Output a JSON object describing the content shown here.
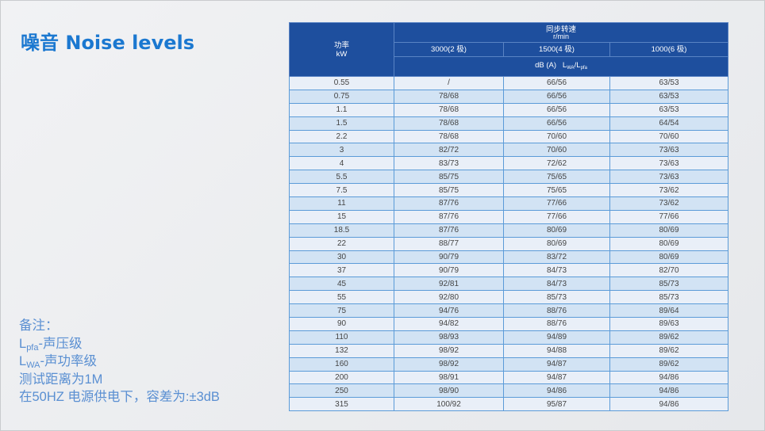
{
  "title": "噪音 Noise levels",
  "notes": {
    "heading": "备注：",
    "lpfa_main": "L",
    "lpfa_sub": "pfa",
    "lpfa_text": "-声压级",
    "lwa_main": "L",
    "lwa_sub": "WA",
    "lwa_text": "-声功率级",
    "distance": "测试距离为1M",
    "condition": "在50HZ 电源供电下，容差为:±3dB"
  },
  "table": {
    "power_header": "功率",
    "power_unit": "kW",
    "speed_header": "同步转速",
    "speed_unit": "r/min",
    "speeds": [
      "3000(2 极)",
      "1500(4 极)",
      "1000(6 极)"
    ],
    "unit_row": "dB (A)   L",
    "unit_sub1": "WA",
    "unit_slash": "/L",
    "unit_sub2": "pfa",
    "rows": [
      [
        "0.55",
        "/",
        "66/56",
        "63/53"
      ],
      [
        "0.75",
        "78/68",
        "66/56",
        "63/53"
      ],
      [
        "1.1",
        "78/68",
        "66/56",
        "63/53"
      ],
      [
        "1.5",
        "78/68",
        "66/56",
        "64/54"
      ],
      [
        "2.2",
        "78/68",
        "70/60",
        "70/60"
      ],
      [
        "3",
        "82/72",
        "70/60",
        "73/63"
      ],
      [
        "4",
        "83/73",
        "72/62",
        "73/63"
      ],
      [
        "5.5",
        "85/75",
        "75/65",
        "73/63"
      ],
      [
        "7.5",
        "85/75",
        "75/65",
        "73/62"
      ],
      [
        "11",
        "87/76",
        "77/66",
        "73/62"
      ],
      [
        "15",
        "87/76",
        "77/66",
        "77/66"
      ],
      [
        "18.5",
        "87/76",
        "80/69",
        "80/69"
      ],
      [
        "22",
        "88/77",
        "80/69",
        "80/69"
      ],
      [
        "30",
        "90/79",
        "83/72",
        "80/69"
      ],
      [
        "37",
        "90/79",
        "84/73",
        "82/70"
      ],
      [
        "45",
        "92/81",
        "84/73",
        "85/73"
      ],
      [
        "55",
        "92/80",
        "85/73",
        "85/73"
      ],
      [
        "75",
        "94/76",
        "88/76",
        "89/64"
      ],
      [
        "90",
        "94/82",
        "88/76",
        "89/63"
      ],
      [
        "110",
        "98/93",
        "94/89",
        "89/62"
      ],
      [
        "132",
        "98/92",
        "94/88",
        "89/62"
      ],
      [
        "160",
        "98/92",
        "94/87",
        "89/62"
      ],
      [
        "200",
        "98/91",
        "94/87",
        "94/86"
      ],
      [
        "250",
        "98/90",
        "94/86",
        "94/86"
      ],
      [
        "315",
        "100/92",
        "95/87",
        "94/86"
      ]
    ]
  }
}
